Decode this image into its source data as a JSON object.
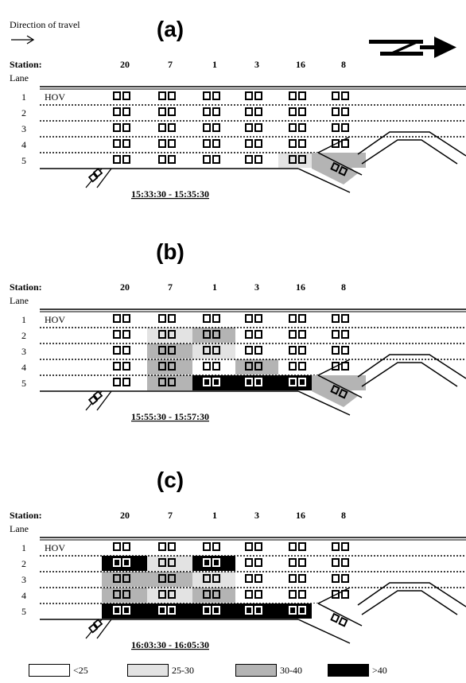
{
  "header": {
    "direction_label": "Direction of travel",
    "direction_arrow": "right-arrow",
    "north_symbol": "north-arrow-icon"
  },
  "labels": {
    "station": "Station:",
    "lane": "Lane",
    "hov": "HOV"
  },
  "stations": [
    "20",
    "7",
    "1",
    "3",
    "16",
    "8"
  ],
  "lanes": [
    "1",
    "2",
    "3",
    "4",
    "5"
  ],
  "colors": {
    "lt25": "#ffffff",
    "c25_30": "#e3e3e3",
    "c30_40": "#b4b4b4",
    "gt40": "#000000"
  },
  "panels": [
    {
      "letter": "(a)",
      "time": "15:33:30 - 15:35:30",
      "cells": [
        [
          "lt25",
          "lt25",
          "lt25",
          "lt25",
          "lt25",
          "lt25"
        ],
        [
          "lt25",
          "lt25",
          "lt25",
          "lt25",
          "lt25",
          "lt25"
        ],
        [
          "lt25",
          "lt25",
          "lt25",
          "lt25",
          "lt25",
          "lt25"
        ],
        [
          "lt25",
          "lt25",
          "lt25",
          "lt25",
          "lt25",
          "lt25"
        ],
        [
          "lt25",
          "lt25",
          "lt25",
          "lt25",
          "c25_30",
          "c30_40"
        ]
      ]
    },
    {
      "letter": "(b)",
      "time": "15:55:30 - 15:57:30",
      "cells": [
        [
          "lt25",
          "lt25",
          "lt25",
          "lt25",
          "lt25",
          "lt25"
        ],
        [
          "lt25",
          "c25_30",
          "c30_40",
          "lt25",
          "lt25",
          "lt25"
        ],
        [
          "lt25",
          "c30_40",
          "c25_30",
          "lt25",
          "lt25",
          "lt25"
        ],
        [
          "lt25",
          "c30_40",
          "lt25",
          "c30_40",
          "lt25",
          "lt25"
        ],
        [
          "lt25",
          "c30_40",
          "gt40",
          "gt40",
          "gt40",
          "c30_40"
        ]
      ]
    },
    {
      "letter": "(c)",
      "time": "16:03:30 - 16:05:30",
      "cells": [
        [
          "lt25",
          "lt25",
          "lt25",
          "lt25",
          "lt25",
          "lt25"
        ],
        [
          "gt40",
          "c25_30",
          "gt40",
          "lt25",
          "lt25",
          "lt25"
        ],
        [
          "c30_40",
          "c30_40",
          "c25_30",
          "lt25",
          "lt25",
          "lt25"
        ],
        [
          "c30_40",
          "c25_30",
          "c30_40",
          "lt25",
          "lt25",
          "lt25"
        ],
        [
          "gt40",
          "gt40",
          "gt40",
          "gt40",
          "gt40",
          "lt25"
        ]
      ]
    }
  ],
  "legend": [
    {
      "key": "lt25",
      "label": "<25"
    },
    {
      "key": "c25_30",
      "label": "25-30"
    },
    {
      "key": "c30_40",
      "label": "30-40"
    },
    {
      "key": "gt40",
      "label": ">40"
    }
  ]
}
